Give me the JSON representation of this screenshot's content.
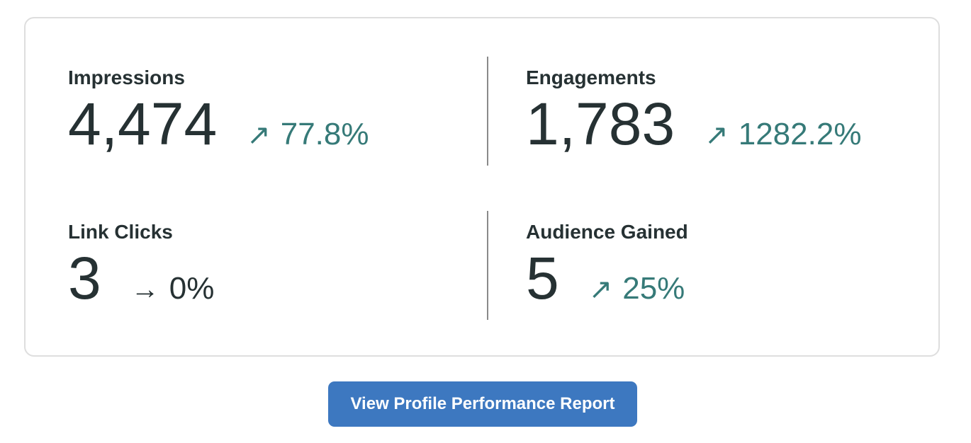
{
  "metrics": [
    {
      "label": "Impressions",
      "value": "4,474",
      "trend_icon": "arrow-up-right-icon",
      "arrow": "↗",
      "change": "77.8%",
      "direction": "up"
    },
    {
      "label": "Engagements",
      "value": "1,783",
      "trend_icon": "arrow-up-right-icon",
      "arrow": "↗",
      "change": "1282.2%",
      "direction": "up"
    },
    {
      "label": "Link Clicks",
      "value": "3",
      "trend_icon": "arrow-right-icon",
      "arrow": "→",
      "change": "0%",
      "direction": "flat"
    },
    {
      "label": "Audience Gained",
      "value": "5",
      "trend_icon": "arrow-up-right-icon",
      "arrow": "↗",
      "change": "25%",
      "direction": "up"
    }
  ],
  "report_button": {
    "label": "View Profile Performance Report"
  },
  "colors": {
    "positive": "#367a78",
    "neutral": "#263133",
    "button": "#3d78c0",
    "border": "#dedede"
  }
}
